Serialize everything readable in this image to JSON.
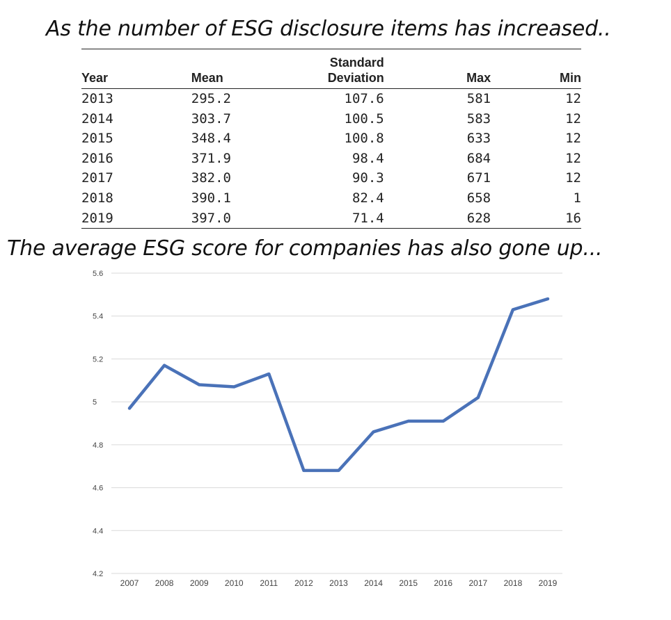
{
  "headlines": {
    "top": "As the number of ESG disclosure items has increased..",
    "middle": "The average ESG score for companies has also gone up..."
  },
  "table": {
    "headers": {
      "year": "Year",
      "mean": "Mean",
      "std_line1": "Standard",
      "std_line2": "Deviation",
      "max": "Max",
      "min": "Min"
    },
    "rows": [
      [
        "2013",
        "295.2",
        "107.6",
        "581",
        "12"
      ],
      [
        "2014",
        "303.7",
        "100.5",
        "583",
        "12"
      ],
      [
        "2015",
        "348.4",
        "100.8",
        "633",
        "12"
      ],
      [
        "2016",
        "371.9",
        "98.4",
        "684",
        "12"
      ],
      [
        "2017",
        "382.0",
        "90.3",
        "671",
        "12"
      ],
      [
        "2018",
        "390.1",
        "82.4",
        "658",
        "1"
      ],
      [
        "2019",
        "397.0",
        "71.4",
        "628",
        "16"
      ]
    ]
  },
  "chart_data": {
    "type": "line",
    "title": "",
    "xlabel": "",
    "ylabel": "",
    "x": [
      "2007",
      "2008",
      "2009",
      "2010",
      "2011",
      "2012",
      "2013",
      "2014",
      "2015",
      "2016",
      "2017",
      "2018",
      "2019"
    ],
    "series": [
      {
        "values": [
          4.97,
          5.17,
          5.08,
          5.07,
          5.13,
          4.68,
          4.68,
          4.86,
          4.91,
          4.91,
          5.02,
          5.43,
          5.48
        ],
        "color": "#4a72b8"
      }
    ],
    "ylim": [
      4.2,
      5.6
    ],
    "yticks": [
      "5.6",
      "5.4",
      "5.2",
      "5",
      "4.8",
      "4.6",
      "4.4",
      "4.2"
    ],
    "grid": true,
    "legend": "none"
  }
}
